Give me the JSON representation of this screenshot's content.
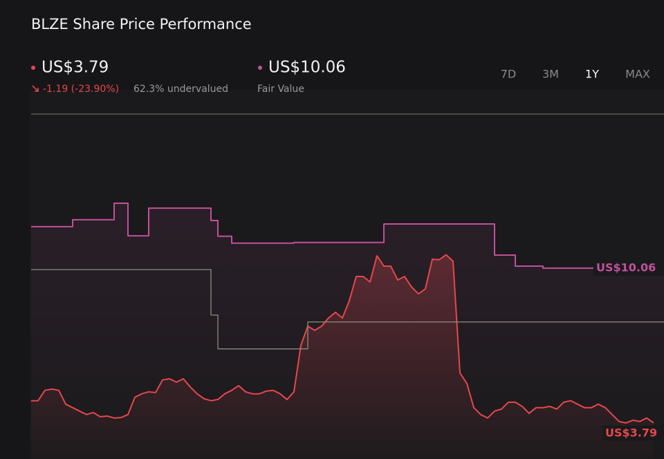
{
  "chart_data": {
    "type": "line",
    "title": "BLZE Share Price Performance",
    "price_label": "US$3.79",
    "change_label": "-1.19 (-23.90%)",
    "undervalued_label": "62.3% undervalued",
    "fair_value_label": "US$10.06",
    "fair_value_caption": "Fair Value",
    "ranges": [
      "7D",
      "3M",
      "1Y",
      "MAX"
    ],
    "active_range": "1Y",
    "ylim": [
      2.33,
      16.3
    ],
    "series": [
      {
        "color": "#e5484d",
        "step": false,
        "values": [
          4.69,
          4.69,
          5.11,
          5.16,
          5.11,
          4.55,
          4.41,
          4.27,
          4.13,
          4.21,
          4.04,
          4.07,
          3.99,
          4.01,
          4.13,
          4.83,
          4.97,
          5.05,
          5.02,
          5.53,
          5.58,
          5.44,
          5.58,
          5.25,
          4.97,
          4.77,
          4.69,
          4.74,
          4.97,
          5.11,
          5.3,
          5.05,
          4.97,
          4.97,
          5.08,
          5.11,
          4.97,
          4.74,
          5.05,
          6.93,
          7.71,
          7.54,
          7.71,
          8.04,
          8.27,
          8.04,
          8.74,
          9.72,
          9.72,
          9.5,
          10.56,
          10.14,
          10.14,
          9.58,
          9.72,
          9.3,
          9.02,
          9.22,
          10.42,
          10.4,
          10.6,
          10.34,
          5.81,
          5.39,
          4.41,
          4.13,
          3.99,
          4.27,
          4.35,
          4.63,
          4.63,
          4.46,
          4.18,
          4.41,
          4.41,
          4.46,
          4.35,
          4.63,
          4.69,
          4.55,
          4.41,
          4.41,
          4.55,
          4.41,
          4.13,
          3.85,
          3.79,
          3.9,
          3.85,
          3.99,
          3.79
        ]
      },
      {
        "color": "#c2509a",
        "step": true,
        "values": [
          11.74,
          11.74,
          11.74,
          11.74,
          11.74,
          11.74,
          12.02,
          12.02,
          12.02,
          12.02,
          12.02,
          12.02,
          12.69,
          12.69,
          11.37,
          11.37,
          11.37,
          12.49,
          12.49,
          12.49,
          12.49,
          12.49,
          12.49,
          12.49,
          12.49,
          12.49,
          11.99,
          11.35,
          11.35,
          11.07,
          11.07,
          11.07,
          11.07,
          11.07,
          11.07,
          11.07,
          11.07,
          11.07,
          11.1,
          11.1,
          11.1,
          11.1,
          11.1,
          11.1,
          11.1,
          11.1,
          11.1,
          11.1,
          11.1,
          11.1,
          11.1,
          11.85,
          11.85,
          11.85,
          11.85,
          11.85,
          11.85,
          11.85,
          11.85,
          11.85,
          11.85,
          11.85,
          11.85,
          11.85,
          11.85,
          11.85,
          11.85,
          10.59,
          10.59,
          10.59,
          10.14,
          10.14,
          10.14,
          10.14,
          10.06,
          10.06,
          10.06,
          10.06,
          10.06,
          10.06,
          10.06,
          10.06,
          10.06,
          10.06,
          10.06,
          10.06,
          10.06,
          10.06,
          10.06,
          10.06,
          10.06
        ]
      },
      {
        "color": "#8d8c80",
        "step": true,
        "values": [
          10.0,
          10.0,
          10.0,
          10.0,
          10.0,
          10.0,
          10.0,
          10.0,
          10.0,
          10.0,
          10.0,
          10.0,
          10.0,
          10.0,
          10.0,
          10.0,
          10.0,
          10.0,
          10.0,
          10.0,
          10.0,
          10.0,
          10.0,
          10.0,
          10.0,
          10.0,
          8.16,
          6.79,
          6.79,
          6.79,
          6.79,
          6.79,
          6.79,
          6.79,
          6.79,
          6.79,
          6.79,
          6.79,
          6.79,
          6.79,
          7.88,
          7.88,
          7.88,
          7.88,
          7.88,
          7.88,
          7.88,
          7.88,
          7.88,
          7.88,
          7.88,
          7.88,
          7.88,
          7.88,
          7.88,
          7.88,
          7.88,
          7.88,
          7.88,
          7.88,
          7.88,
          7.88,
          7.88,
          7.88,
          7.88,
          7.88,
          7.88,
          7.88,
          7.88,
          7.88,
          7.88,
          7.88,
          7.88,
          7.88,
          7.88,
          7.88,
          7.88,
          7.88,
          7.88,
          7.88,
          7.88,
          7.88,
          7.88,
          7.88,
          7.88,
          7.88,
          7.88,
          7.88,
          7.88,
          7.88,
          7.88
        ]
      }
    ]
  }
}
